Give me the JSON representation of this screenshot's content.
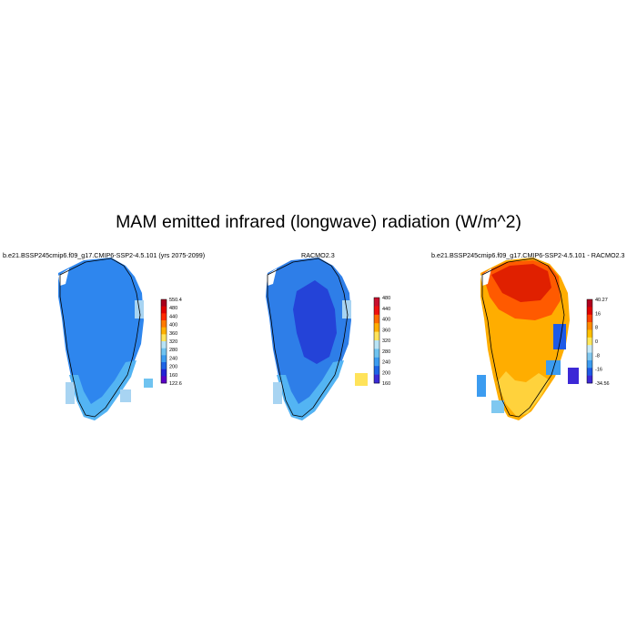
{
  "title": "MAM emitted infrared (longwave) radiation (W/m^2)",
  "panels": [
    {
      "subtitle": "b.e21.BSSP245cmip6.f09_g17.CMIP6-SSP2-4.5.101 (yrs 2075-2099)",
      "colorbar": {
        "labels": [
          "550.4",
          "480",
          "440",
          "400",
          "360",
          "320",
          "280",
          "240",
          "200",
          "160",
          "122.6"
        ],
        "colors": [
          "#a8001c",
          "#e00000",
          "#ff2a00",
          "#ff7a00",
          "#ffb000",
          "#ffe35a",
          "#b8e3f5",
          "#6fc3f0",
          "#3c9cf0",
          "#1e64e6",
          "#2323d6",
          "#5a00c8"
        ]
      }
    },
    {
      "subtitle": "RACMO2.3",
      "colorbar": {
        "labels": [
          "480",
          "440",
          "400",
          "360",
          "320",
          "280",
          "240",
          "200",
          "160"
        ],
        "colors": [
          "#c8102e",
          "#f01010",
          "#ff6a00",
          "#ffae00",
          "#ffe35a",
          "#b8e3f5",
          "#6fc3f0",
          "#3c9cf0",
          "#1e64e6",
          "#3a2ad6"
        ]
      }
    },
    {
      "subtitle": "b.e21.BSSP245cmip6.f09_g17.CMIP6-SSP2-4.5.101 - RACMO2.3",
      "colorbar": {
        "labels": [
          "40.27",
          "16",
          "8",
          "0",
          "-8",
          "-16",
          "-34.56"
        ],
        "colors": [
          "#b0001e",
          "#e00000",
          "#ff4000",
          "#ff8c00",
          "#ffc000",
          "#ffe85a",
          "#c8eaf8",
          "#80c8f0",
          "#3c9cf0",
          "#1e5ae6",
          "#3c28d6"
        ]
      }
    }
  ]
}
